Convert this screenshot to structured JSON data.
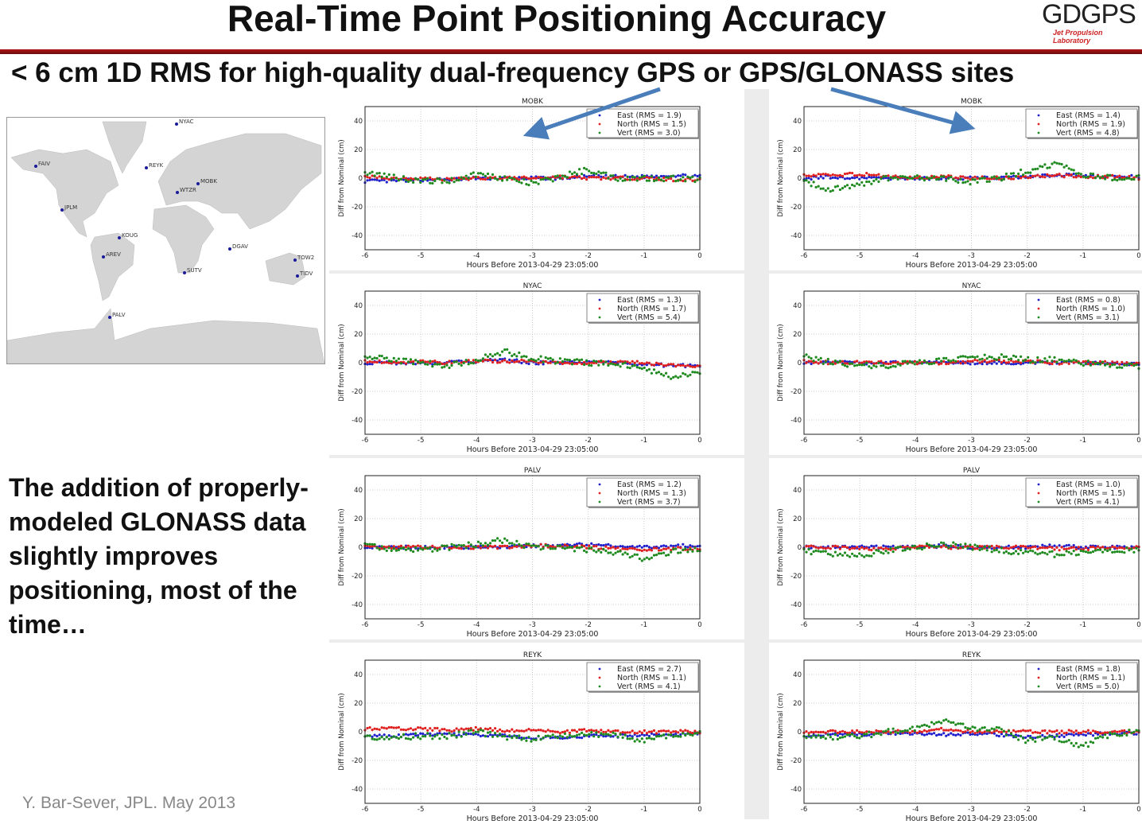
{
  "header": {
    "title": "Real-Time Point Positioning Accuracy",
    "logo_text": "GDGPS",
    "logo_subtext": "Jet Propulsion Laboratory",
    "rule_color": "#b01515"
  },
  "subtitle": "< 6 cm 1D RMS for high-quality dual-frequency GPS or GPS/GLONASS sites",
  "map": {
    "sites": [
      "NYAC",
      "FAIV",
      "REYK",
      "MOBK",
      "WTZR",
      "JPLM",
      "KOUG",
      "DGAV",
      "AREV",
      "TOW2",
      "SUTV",
      "TIDV",
      "PALV"
    ],
    "site_color": "#1a1a99",
    "land_color": "#d4d4d4"
  },
  "blurb": "The addition of properly-modeled GLONASS data slightly improves positioning, most of the time…",
  "credit": "Y. Bar-Sever, JPL. May 2013",
  "arrow_color": "#4a7ebb",
  "chart_data": [
    {
      "type": "scatter",
      "title": "MOBK",
      "column": "GPS",
      "xlabel": "Hours Before 2013-04-29 23:05:00",
      "ylabel": "Diff from Nominal (cm)",
      "xlim": [
        -6,
        0
      ],
      "ylim": [
        -50,
        50
      ],
      "xticks": [
        "-6",
        "-5",
        "-4",
        "-3",
        "-2",
        "-1",
        "0"
      ],
      "yticks": [
        "40",
        "20",
        "0",
        "-20",
        "-40"
      ],
      "grid": true,
      "legend": "top-right",
      "x": [
        -6,
        -5.5,
        -5,
        -4.5,
        -4,
        -3.5,
        -3,
        -2.5,
        -2,
        -1.5,
        -1,
        -0.5,
        0
      ],
      "series": [
        {
          "name": "East (RMS = 1.9)",
          "color": "#1f1fcc",
          "values": [
            -2,
            -2,
            -1,
            -1,
            0,
            0,
            0,
            0,
            1,
            1,
            1,
            2,
            1
          ]
        },
        {
          "name": "North (RMS = 1.5)",
          "color": "#e01f1f",
          "values": [
            1,
            0,
            0,
            -1,
            0,
            0,
            0,
            1,
            0,
            0,
            0,
            -1,
            -1
          ]
        },
        {
          "name": "Vert (RMS = 3.0)",
          "color": "#1f8a1f",
          "values": [
            4,
            1,
            -2,
            -2,
            3,
            0,
            -4,
            1,
            6,
            0,
            0,
            0,
            -1
          ]
        }
      ]
    },
    {
      "type": "scatter",
      "title": "MOBK",
      "column": "GPS/GLONASS",
      "xlabel": "Hours Before 2013-04-29 23:05:00",
      "ylabel": "Diff from Nominal (cm)",
      "xlim": [
        -6,
        0
      ],
      "ylim": [
        -50,
        50
      ],
      "xticks": [
        "-6",
        "-5",
        "-4",
        "-3",
        "-2",
        "-1",
        "0"
      ],
      "yticks": [
        "40",
        "20",
        "0",
        "-20",
        "-40"
      ],
      "grid": true,
      "legend": "top-right",
      "x": [
        -6,
        -5.5,
        -5,
        -4.5,
        -4,
        -3.5,
        -3,
        -2.5,
        -2,
        -1.5,
        -1,
        -0.5,
        0
      ],
      "series": [
        {
          "name": "East (RMS = 1.4)",
          "color": "#1f1fcc",
          "values": [
            0,
            1,
            0,
            0,
            0,
            0,
            0,
            0,
            1,
            2,
            2,
            1,
            1
          ]
        },
        {
          "name": "North (RMS = 1.9)",
          "color": "#e01f1f",
          "values": [
            2,
            2,
            3,
            1,
            0,
            1,
            0,
            0,
            1,
            2,
            1,
            1,
            0
          ]
        },
        {
          "name": "Vert (RMS = 4.8)",
          "color": "#1f8a1f",
          "values": [
            -2,
            -8,
            -4,
            0,
            0,
            0,
            -3,
            0,
            5,
            10,
            2,
            0,
            0
          ]
        }
      ]
    },
    {
      "type": "scatter",
      "title": "NYAC",
      "column": "GPS",
      "xlabel": "Hours Before 2013-04-29 23:05:00",
      "ylabel": "Diff from Nominal (cm)",
      "xlim": [
        -6,
        0
      ],
      "ylim": [
        -50,
        50
      ],
      "xticks": [
        "-6",
        "-5",
        "-4",
        "-3",
        "-2",
        "-1",
        "0"
      ],
      "yticks": [
        "40",
        "20",
        "0",
        "-20",
        "-40"
      ],
      "grid": true,
      "legend": "top-right",
      "x": [
        -6,
        -5.5,
        -5,
        -4.5,
        -4,
        -3.5,
        -3,
        -2.5,
        -2,
        -1.5,
        -1,
        -0.5,
        0
      ],
      "series": [
        {
          "name": "East (RMS = 1.3)",
          "color": "#1f1fcc",
          "values": [
            0,
            0,
            0,
            0,
            1,
            2,
            0,
            0,
            0,
            0,
            -1,
            -2,
            -2
          ]
        },
        {
          "name": "North (RMS = 1.7)",
          "color": "#e01f1f",
          "values": [
            1,
            0,
            1,
            0,
            1,
            1,
            1,
            0,
            0,
            0,
            0,
            -2,
            -2
          ]
        },
        {
          "name": "Vert (RMS = 5.4)",
          "color": "#1f8a1f",
          "values": [
            4,
            2,
            0,
            -2,
            2,
            8,
            3,
            1,
            0,
            -1,
            -4,
            -10,
            -6
          ]
        }
      ]
    },
    {
      "type": "scatter",
      "title": "NYAC",
      "column": "GPS/GLONASS",
      "xlabel": "Hours Before 2013-04-29 23:05:00",
      "ylabel": "Diff from Nominal (cm)",
      "xlim": [
        -6,
        0
      ],
      "ylim": [
        -50,
        50
      ],
      "xticks": [
        "-6",
        "-5",
        "-4",
        "-3",
        "-2",
        "-1",
        "0"
      ],
      "yticks": [
        "40",
        "20",
        "0",
        "-20",
        "-40"
      ],
      "grid": true,
      "legend": "top-right",
      "x": [
        -6,
        -5.5,
        -5,
        -4.5,
        -4,
        -3.5,
        -3,
        -2.5,
        -2,
        -1.5,
        -1,
        -0.5,
        0
      ],
      "series": [
        {
          "name": "East (RMS = 0.8)",
          "color": "#1f1fcc",
          "values": [
            0,
            0,
            0,
            0,
            0,
            0,
            0,
            0,
            0,
            0,
            0,
            -1,
            -1
          ]
        },
        {
          "name": "North (RMS = 1.0)",
          "color": "#e01f1f",
          "values": [
            1,
            0,
            0,
            0,
            0,
            0,
            1,
            1,
            1,
            0,
            0,
            0,
            -1
          ]
        },
        {
          "name": "Vert (RMS = 3.1)",
          "color": "#1f8a1f",
          "values": [
            4,
            0,
            -2,
            -2,
            0,
            2,
            4,
            4,
            2,
            2,
            0,
            -2,
            -3
          ]
        }
      ]
    },
    {
      "type": "scatter",
      "title": "PALV",
      "column": "GPS",
      "xlabel": "Hours Before 2013-04-29 23:05:00",
      "ylabel": "Diff from Nominal (cm)",
      "xlim": [
        -6,
        0
      ],
      "ylim": [
        -50,
        50
      ],
      "xticks": [
        "-6",
        "-5",
        "-4",
        "-3",
        "-2",
        "-1",
        "0"
      ],
      "yticks": [
        "40",
        "20",
        "0",
        "-20",
        "-40"
      ],
      "grid": true,
      "legend": "top-right",
      "x": [
        -6,
        -5.5,
        -5,
        -4.5,
        -4,
        -3.5,
        -3,
        -2.5,
        -2,
        -1.5,
        -1,
        -0.5,
        0
      ],
      "series": [
        {
          "name": "East (RMS = 1.2)",
          "color": "#1f1fcc",
          "values": [
            0,
            0,
            0,
            0,
            0,
            0,
            1,
            1,
            2,
            1,
            0,
            1,
            1
          ]
        },
        {
          "name": "North (RMS = 1.3)",
          "color": "#e01f1f",
          "values": [
            0,
            0,
            0,
            0,
            0,
            0,
            1,
            1,
            0,
            -1,
            -2,
            -1,
            -1
          ]
        },
        {
          "name": "Vert (RMS = 3.7)",
          "color": "#1f8a1f",
          "values": [
            2,
            -2,
            -2,
            0,
            2,
            5,
            0,
            0,
            -2,
            -4,
            -8,
            -3,
            -2
          ]
        }
      ]
    },
    {
      "type": "scatter",
      "title": "PALV",
      "column": "GPS/GLONASS",
      "xlabel": "Hours Before 2013-04-29 23:05:00",
      "ylabel": "Diff from Nominal (cm)",
      "xlim": [
        -6,
        0
      ],
      "ylim": [
        -50,
        50
      ],
      "xticks": [
        "-6",
        "-5",
        "-4",
        "-3",
        "-2",
        "-1",
        "0"
      ],
      "yticks": [
        "40",
        "20",
        "0",
        "-20",
        "-40"
      ],
      "grid": true,
      "legend": "top-right",
      "x": [
        -6,
        -5.5,
        -5,
        -4.5,
        -4,
        -3.5,
        -3,
        -2.5,
        -2,
        -1.5,
        -1,
        -0.5,
        0
      ],
      "series": [
        {
          "name": "East (RMS = 1.0)",
          "color": "#1f1fcc",
          "values": [
            0,
            0,
            0,
            0,
            0,
            1,
            0,
            0,
            0,
            1,
            0,
            0,
            0
          ]
        },
        {
          "name": "North (RMS = 1.5)",
          "color": "#e01f1f",
          "values": [
            0,
            0,
            -1,
            -1,
            0,
            0,
            0,
            0,
            0,
            -1,
            -1,
            0,
            0
          ]
        },
        {
          "name": "Vert (RMS = 4.1)",
          "color": "#1f8a1f",
          "values": [
            -2,
            -5,
            -6,
            -2,
            0,
            2,
            0,
            -2,
            -4,
            -5,
            -4,
            -2,
            -2
          ]
        }
      ]
    },
    {
      "type": "scatter",
      "title": "REYK",
      "column": "GPS",
      "xlabel": "Hours Before 2013-04-29 23:05:00",
      "ylabel": "Diff from Nominal (cm)",
      "xlim": [
        -6,
        0
      ],
      "ylim": [
        -50,
        50
      ],
      "xticks": [
        "-6",
        "-5",
        "-4",
        "-3",
        "-2",
        "-1",
        "0"
      ],
      "yticks": [
        "40",
        "20",
        "0",
        "-20",
        "-40"
      ],
      "grid": true,
      "legend": "top-right",
      "x": [
        -6,
        -5.5,
        -5,
        -4.5,
        -4,
        -3.5,
        -3,
        -2.5,
        -2,
        -1.5,
        -1,
        -0.5,
        0
      ],
      "series": [
        {
          "name": "East (RMS = 2.7)",
          "color": "#1f1fcc",
          "values": [
            -3,
            -3,
            -2,
            -2,
            -2,
            -3,
            -4,
            -4,
            -3,
            -3,
            -2,
            -2,
            -1
          ]
        },
        {
          "name": "North (RMS = 1.1)",
          "color": "#e01f1f",
          "values": [
            2,
            2,
            2,
            1,
            2,
            1,
            1,
            0,
            1,
            0,
            0,
            0,
            0
          ]
        },
        {
          "name": "Vert (RMS = 4.1)",
          "color": "#1f8a1f",
          "values": [
            -4,
            -4,
            -3,
            -3,
            0,
            -4,
            -5,
            -3,
            -2,
            -2,
            -6,
            -3,
            0
          ]
        }
      ]
    },
    {
      "type": "scatter",
      "title": "REYK",
      "column": "GPS/GLONASS",
      "xlabel": "Hours Before 2013-04-29 23:05:00",
      "ylabel": "Diff from Nominal (cm)",
      "xlim": [
        -6,
        0
      ],
      "ylim": [
        -50,
        50
      ],
      "xticks": [
        "-6",
        "-5",
        "-4",
        "-3",
        "-2",
        "-1",
        "0"
      ],
      "yticks": [
        "40",
        "20",
        "0",
        "-20",
        "-40"
      ],
      "grid": true,
      "legend": "top-right",
      "x": [
        -6,
        -5.5,
        -5,
        -4.5,
        -4,
        -3.5,
        -3,
        -2.5,
        -2,
        -1.5,
        -1,
        -0.5,
        0
      ],
      "series": [
        {
          "name": "East (RMS = 1.8)",
          "color": "#1f1fcc",
          "values": [
            -3,
            -2,
            -2,
            -1,
            -1,
            -2,
            -1,
            -2,
            -4,
            -3,
            -2,
            -1,
            -1
          ]
        },
        {
          "name": "North (RMS = 1.1)",
          "color": "#e01f1f",
          "values": [
            0,
            0,
            0,
            0,
            0,
            2,
            0,
            0,
            0,
            0,
            0,
            0,
            0
          ]
        },
        {
          "name": "Vert (RMS = 5.0)",
          "color": "#1f8a1f",
          "values": [
            -4,
            -4,
            -3,
            0,
            2,
            7,
            3,
            1,
            -6,
            -4,
            -10,
            -2,
            0
          ]
        }
      ]
    }
  ]
}
